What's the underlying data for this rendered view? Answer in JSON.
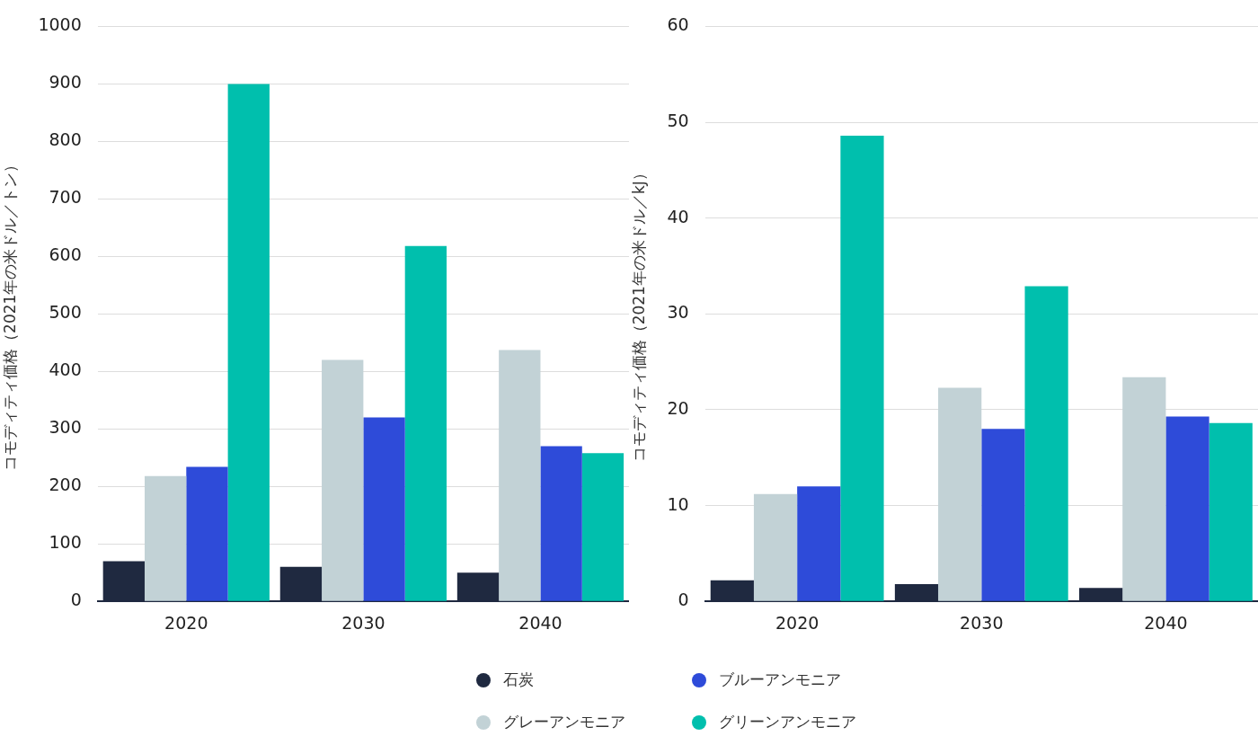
{
  "chart_data": [
    {
      "type": "bar",
      "ylabel": "コモディティ価格（2021年の米ドル／トン）",
      "categories": [
        "2020",
        "2030",
        "2040"
      ],
      "ylim": [
        0,
        1000
      ],
      "yticks": [
        0,
        100,
        200,
        300,
        400,
        500,
        600,
        700,
        800,
        900,
        1000
      ],
      "grid": "y",
      "legend": "bottom",
      "series": [
        {
          "name": "石炭",
          "color": "#1f2940",
          "values": [
            70,
            60,
            50
          ]
        },
        {
          "name": "グレーアンモニア",
          "color": "#c2d2d6",
          "values": [
            218,
            420,
            437
          ]
        },
        {
          "name": "ブルーアンモニア",
          "color": "#2e4bd9",
          "values": [
            234,
            320,
            270
          ]
        },
        {
          "name": "グリーンアンモニア",
          "color": "#00bfad",
          "values": [
            900,
            618,
            258
          ]
        }
      ]
    },
    {
      "type": "bar",
      "ylabel": "コモディティ価格（2021年の米ドル／kJ）",
      "categories": [
        "2020",
        "2030",
        "2040"
      ],
      "ylim": [
        0,
        60
      ],
      "yticks": [
        0,
        10,
        20,
        30,
        40,
        50,
        60
      ],
      "grid": "y",
      "series": [
        {
          "color": "#1f2940",
          "values": [
            2.2,
            1.8,
            1.4
          ]
        },
        {
          "color": "#c2d2d6",
          "values": [
            11.2,
            22.3,
            23.4
          ]
        },
        {
          "color": "#2e4bd9",
          "values": [
            12.0,
            18.0,
            19.3
          ]
        },
        {
          "color": "#00bfad",
          "values": [
            48.6,
            32.9,
            18.6
          ]
        }
      ]
    }
  ]
}
